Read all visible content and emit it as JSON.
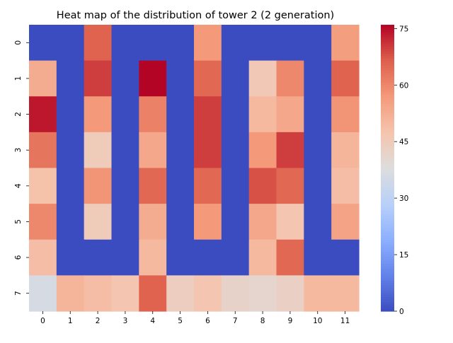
{
  "chart_data": {
    "type": "heatmap",
    "title": "Heat map of the distribution of tower 2 (2 generation)",
    "xlabel": "",
    "ylabel": "",
    "x_ticks": [
      "0",
      "1",
      "2",
      "3",
      "4",
      "5",
      "6",
      "7",
      "8",
      "9",
      "10",
      "11"
    ],
    "y_ticks": [
      "0",
      "1",
      "2",
      "3",
      "4",
      "5",
      "6",
      "7"
    ],
    "colormap": "coolwarm",
    "vmin": 0,
    "vmax": 76,
    "colorbar_ticks": [
      0,
      15,
      30,
      45,
      60,
      75
    ],
    "values": [
      [
        0,
        0,
        66,
        0,
        0,
        0,
        57,
        0,
        0,
        0,
        0,
        56
      ],
      [
        53,
        0,
        70,
        0,
        76,
        0,
        65,
        0,
        46,
        60,
        0,
        66
      ],
      [
        74,
        0,
        57,
        0,
        61,
        0,
        70,
        0,
        50,
        54,
        0,
        58
      ],
      [
        63,
        0,
        45,
        0,
        54,
        0,
        70,
        0,
        57,
        70,
        0,
        51
      ],
      [
        48,
        0,
        58,
        0,
        65,
        0,
        65,
        0,
        68,
        65,
        0,
        49
      ],
      [
        60,
        0,
        45,
        0,
        53,
        0,
        57,
        0,
        54,
        47,
        0,
        55
      ],
      [
        49,
        0,
        0,
        0,
        50,
        0,
        0,
        0,
        50,
        65,
        0,
        0
      ],
      [
        36,
        51,
        49,
        47,
        66,
        44,
        47,
        42,
        41,
        43,
        50,
        50
      ]
    ]
  },
  "colors": {
    "cold": "#3b4cc0",
    "neutral": "#dddddd",
    "hot": "#b40426"
  }
}
